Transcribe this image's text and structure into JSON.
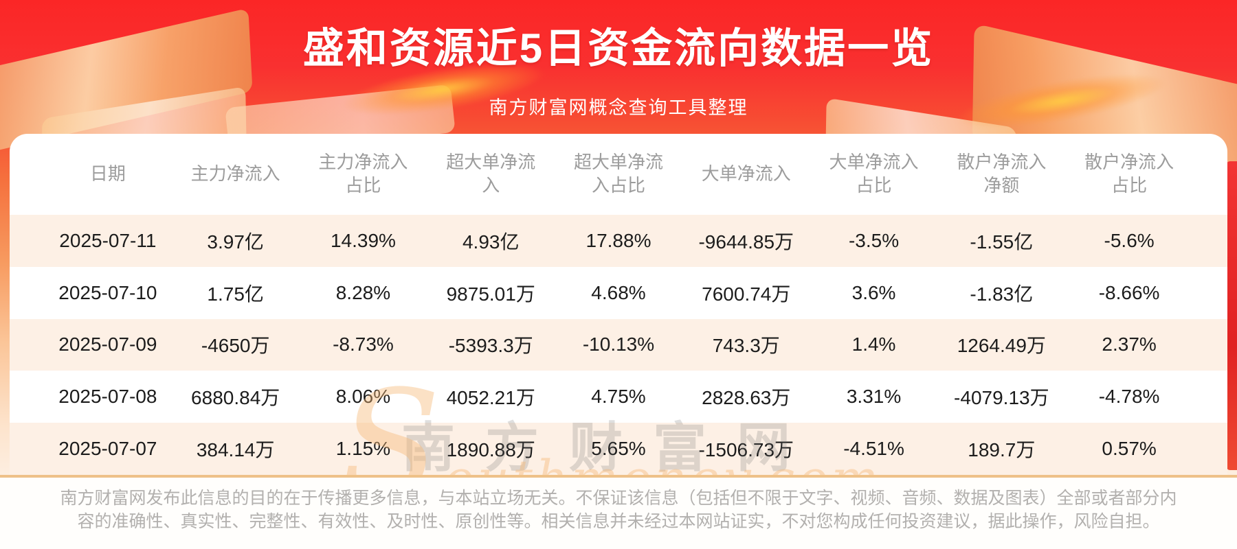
{
  "page": {
    "title": "盛和资源近5日资金流向数据一览",
    "subtitle": "南方财富网概念查询工具整理"
  },
  "chart_data": {
    "type": "table",
    "title": "盛和资源近5日资金流向数据一览",
    "subtitle": "南方财富网概念查询工具整理",
    "columns": [
      "日期",
      "主力净流入",
      "主力净流入占比",
      "超大单净流入",
      "超大单净流入占比",
      "大单净流入",
      "大单净流入占比",
      "散户净流入净额",
      "散户净流入占比"
    ],
    "rows": [
      [
        "2025-07-11",
        "3.97亿",
        "14.39%",
        "4.93亿",
        "17.88%",
        "-9644.85万",
        "-3.5%",
        "-1.55亿",
        "-5.6%"
      ],
      [
        "2025-07-10",
        "1.75亿",
        "8.28%",
        "9875.01万",
        "4.68%",
        "7600.74万",
        "3.6%",
        "-1.83亿",
        "-8.66%"
      ],
      [
        "2025-07-09",
        "-4650万",
        "-8.73%",
        "-5393.3万",
        "-10.13%",
        "743.3万",
        "1.4%",
        "1264.49万",
        "2.37%"
      ],
      [
        "2025-07-08",
        "6880.84万",
        "8.06%",
        "4052.21万",
        "4.75%",
        "2828.63万",
        "3.31%",
        "-4079.13万",
        "-4.78%"
      ],
      [
        "2025-07-07",
        "384.14万",
        "1.15%",
        "1890.88万",
        "5.65%",
        "-1506.73万",
        "-4.51%",
        "189.7万",
        "0.57%"
      ]
    ],
    "layout": {
      "striped_rows": "odd",
      "header_position": "top"
    }
  },
  "watermark": {
    "cn": "南方财富网",
    "en": "Southmoney.com"
  },
  "footer": {
    "disclaimer": "南方财富网发布此信息的目的在于传播更多信息，与本站立场无关。不保证该信息（包括但不限于文字、视频、音频、数据及图表）全部或者部分内容的准确性、真实性、完整性、有效性、及时性、原创性等。相关信息并未经过本网站证实，不对您构成任何投资建议，据此操作，风险自担。"
  },
  "colors": {
    "banner_red": "#fb2626",
    "banner_orange": "#f5713e",
    "stripe_peach": "#fdf0e5",
    "divider_tan": "#eec188",
    "header_text": "#9c9c9c",
    "cell_text": "#1c1c1c",
    "footer_text": "#b2b0ae",
    "title_text": "#ffffff"
  }
}
